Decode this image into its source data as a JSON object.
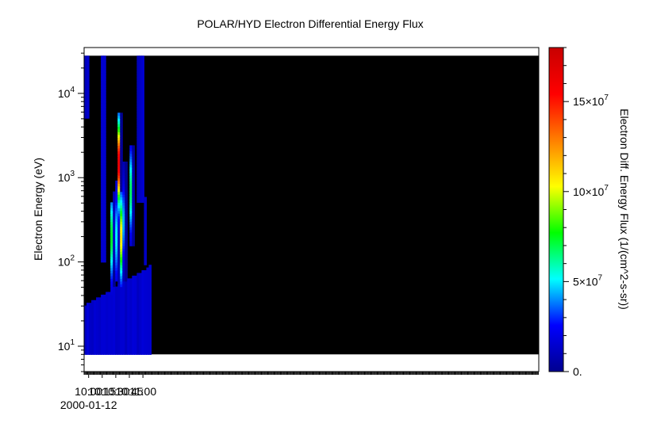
{
  "chart_data": {
    "type": "heatmap",
    "title": "POLAR/HYD  Electron Differential Energy Flux",
    "ylabel": "Electron Energy (eV)",
    "colorbar_label": "Electron Diff. Energy Flux (1/(cm^2-s-sr))",
    "x_axis": {
      "scale": "time",
      "range_minutes": [
        595,
        1097.5
      ],
      "ticks": [
        {
          "label": "10:00",
          "minutes": 600,
          "sub": "2000-01-12"
        },
        {
          "label": "10:15",
          "minutes": 615
        },
        {
          "label": "10:30",
          "minutes": 630
        },
        {
          "label": "10:45",
          "minutes": 645
        },
        {
          "label": "11:00",
          "minutes": 660
        }
      ],
      "minor_step_minutes": 1
    },
    "y_axis": {
      "scale": "log",
      "range": [
        5,
        35000
      ],
      "data_range": [
        8,
        28000
      ],
      "ticks": [
        {
          "value": 10,
          "mantissa": "10",
          "exp": "1"
        },
        {
          "value": 100,
          "mantissa": "10",
          "exp": "2"
        },
        {
          "value": 1000,
          "mantissa": "10",
          "exp": "3"
        },
        {
          "value": 10000,
          "mantissa": "10",
          "exp": "4"
        }
      ]
    },
    "colorbar": {
      "range": [
        0,
        180000000
      ],
      "ticks": [
        {
          "value": 0,
          "label": "0."
        },
        {
          "value": 50000000,
          "label": "5×10",
          "exp": "7"
        },
        {
          "value": 100000000,
          "label": "10×10",
          "exp": "7"
        },
        {
          "value": 150000000,
          "label": "15×10",
          "exp": "7"
        }
      ],
      "colors": [
        "#00008f",
        "#0000ff",
        "#00ffff",
        "#00ff00",
        "#ffff00",
        "#ff7f00",
        "#ff0000",
        "#c80000"
      ]
    },
    "background_color": "#000000",
    "features": [
      {
        "kind": "low-energy band",
        "t_start": 595,
        "t_end": 668,
        "e_low": 8,
        "e_high_start": 30,
        "e_high_end": 90,
        "flux": 14000000
      },
      {
        "kind": "high-energy patch",
        "t_start": 595,
        "t_end": 599,
        "e_low": 5000,
        "e_high": 28000,
        "flux": 12000000
      },
      {
        "kind": "plume",
        "t_start": 613,
        "t_end": 619,
        "e_low": 100,
        "e_high": 28000,
        "flux": 13000000
      },
      {
        "kind": "plume",
        "t_start": 652,
        "t_end": 660,
        "e_low": 500,
        "e_high": 28000,
        "flux": 12000000
      },
      {
        "kind": "plume",
        "t_start": 660,
        "t_end": 665,
        "e_low": 90,
        "e_high": 600,
        "flux": 11000000
      },
      {
        "kind": "spike",
        "t_center": 625.5,
        "width": 1.2,
        "e_low": 20,
        "e_high": 500,
        "e_peak": 200,
        "flux": 60000000
      },
      {
        "kind": "spike",
        "t_center": 629,
        "width": 0.8,
        "e_low": 80,
        "e_high": 700,
        "e_peak": 250,
        "flux": 40000000
      },
      {
        "kind": "spike",
        "t_center": 630.7,
        "width": 1.0,
        "e_low": 60,
        "e_high": 900,
        "e_peak": 200,
        "flux": 50000000
      },
      {
        "kind": "spike",
        "t_center": 633.4,
        "width": 1.2,
        "e_low": 40,
        "e_high": 6000,
        "e_peak": 1500,
        "flux": 165000000
      },
      {
        "kind": "spike",
        "t_center": 634.8,
        "width": 0.8,
        "e_low": 70,
        "e_high": 500,
        "e_peak": 180,
        "flux": 120000000
      },
      {
        "kind": "spike",
        "t_center": 636.2,
        "width": 0.8,
        "e_low": 50,
        "e_high": 700,
        "e_peak": 200,
        "flux": 95000000
      },
      {
        "kind": "spike",
        "t_center": 639.5,
        "width": 1.0,
        "e_low": 50,
        "e_high": 1500,
        "e_peak": 300,
        "flux": 75000000
      },
      {
        "kind": "spike",
        "t_center": 646.5,
        "width": 0.8,
        "e_low": 150,
        "e_high": 2500,
        "e_peak": 700,
        "flux": 60000000
      },
      {
        "kind": "spike",
        "t_center": 648,
        "width": 0.8,
        "e_low": 150,
        "e_high": 2500,
        "e_peak": 700,
        "flux": 55000000
      }
    ]
  }
}
